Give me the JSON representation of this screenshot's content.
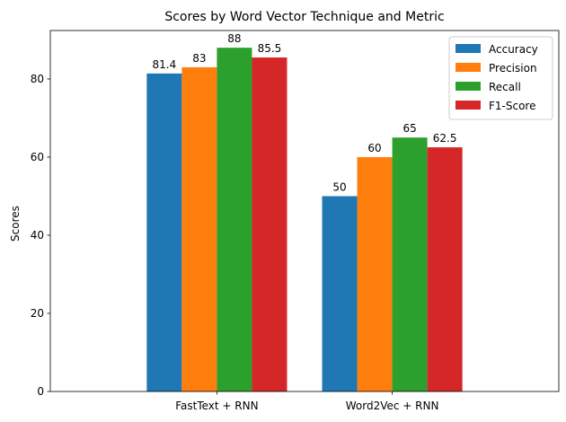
{
  "chart_data": {
    "type": "bar",
    "title": "Scores by Word Vector Technique and Metric",
    "xlabel": "",
    "ylabel": "Scores",
    "categories": [
      "FastText + RNN",
      "Word2Vec + RNN"
    ],
    "series": [
      {
        "name": "Accuracy",
        "values": [
          81.4,
          50
        ],
        "labels": [
          "81.4",
          "50"
        ],
        "color": "#1f77b4"
      },
      {
        "name": "Precision",
        "values": [
          83,
          60
        ],
        "labels": [
          "83",
          "60"
        ],
        "color": "#ff7f0e"
      },
      {
        "name": "Recall",
        "values": [
          88,
          65
        ],
        "labels": [
          "88",
          "65"
        ],
        "color": "#2ca02c"
      },
      {
        "name": "F1-Score",
        "values": [
          85.5,
          62.5
        ],
        "labels": [
          "85.5",
          "62.5"
        ],
        "color": "#d62728"
      }
    ],
    "ylim": [
      0,
      92.4
    ],
    "yticks": [
      0,
      20,
      40,
      60,
      80
    ],
    "grid": false,
    "legend": "top-right"
  }
}
